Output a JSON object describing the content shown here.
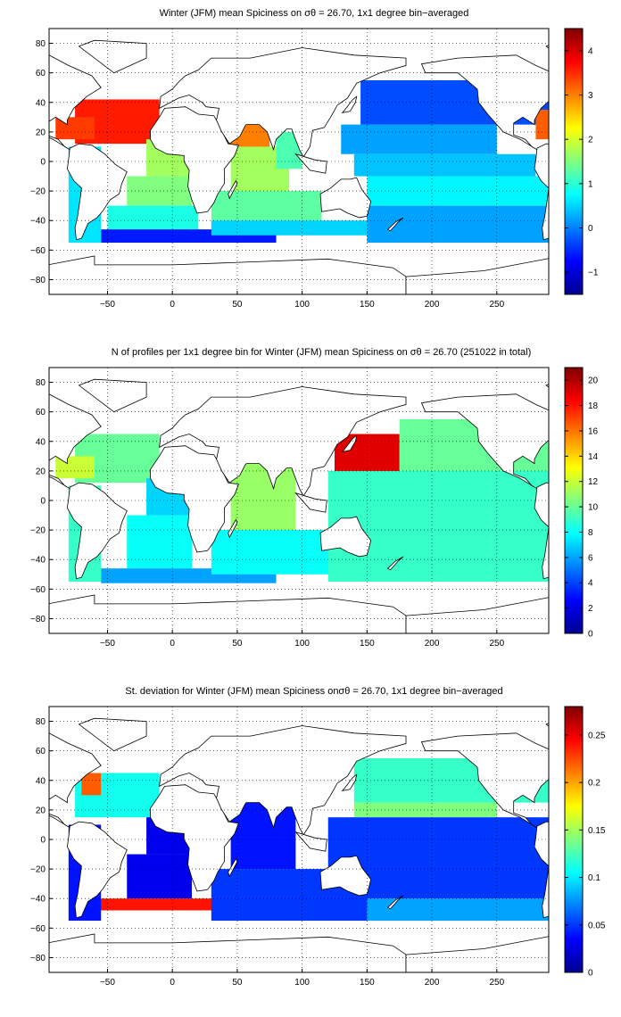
{
  "chart_data": [
    {
      "type": "heatmap",
      "title": "Winter (JFM) mean Spiciness on σθ = 26.70, 1x1 degree bin−averaged",
      "xlabel": "",
      "ylabel": "",
      "xlim": [
        -95,
        290
      ],
      "ylim": [
        -90,
        90
      ],
      "x_ticks": [
        -50,
        0,
        50,
        100,
        150,
        200,
        250
      ],
      "y_ticks": [
        80,
        60,
        40,
        20,
        0,
        -20,
        -40,
        -60,
        -80
      ],
      "grid": true,
      "colormap": "jet",
      "colorbar": {
        "min": -1.5,
        "max": 4.5,
        "ticks": [
          4,
          3,
          2,
          1,
          0,
          -1
        ]
      },
      "regions": [
        {
          "x": [
            -75,
            -10
          ],
          "y": [
            12,
            42
          ],
          "value": 3.6
        },
        {
          "x": [
            -90,
            -60
          ],
          "y": [
            15,
            30
          ],
          "value": 3.4
        },
        {
          "x": [
            -20,
            20
          ],
          "y": [
            -10,
            15
          ],
          "value": 1.7
        },
        {
          "x": [
            -35,
            15
          ],
          "y": [
            -30,
            -10
          ],
          "value": 1.5
        },
        {
          "x": [
            -50,
            20
          ],
          "y": [
            -46,
            -30
          ],
          "value": 0.9
        },
        {
          "x": [
            -55,
            80
          ],
          "y": [
            -55,
            -46
          ],
          "value": -0.6
        },
        {
          "x": [
            -80,
            -55
          ],
          "y": [
            -55,
            10
          ],
          "value": 0.6
        },
        {
          "x": [
            40,
            75
          ],
          "y": [
            10,
            27
          ],
          "value": 3.0
        },
        {
          "x": [
            45,
            90
          ],
          "y": [
            -20,
            10
          ],
          "value": 1.7
        },
        {
          "x": [
            80,
            100
          ],
          "y": [
            -5,
            20
          ],
          "value": 1.2
        },
        {
          "x": [
            30,
            115
          ],
          "y": [
            -40,
            -20
          ],
          "value": 1.3
        },
        {
          "x": [
            30,
            150
          ],
          "y": [
            -50,
            -40
          ],
          "value": 0.5
        },
        {
          "x": [
            145,
            290
          ],
          "y": [
            25,
            55
          ],
          "value": -0.3
        },
        {
          "x": [
            130,
            250
          ],
          "y": [
            5,
            25
          ],
          "value": 0.2
        },
        {
          "x": [
            140,
            280
          ],
          "y": [
            -10,
            5
          ],
          "value": 0.4
        },
        {
          "x": [
            150,
            290
          ],
          "y": [
            -30,
            -10
          ],
          "value": 0.7
        },
        {
          "x": [
            150,
            290
          ],
          "y": [
            -55,
            -30
          ],
          "value": 0.2
        },
        {
          "x": [
            280,
            290
          ],
          "y": [
            15,
            35
          ],
          "value": 3.2
        }
      ]
    },
    {
      "type": "heatmap",
      "title": "N of profiles per 1x1 degree bin for Winter (JFM) mean Spiciness on σθ = 26.70 (251022 in total)",
      "xlabel": "",
      "ylabel": "",
      "xlim": [
        -95,
        290
      ],
      "ylim": [
        -90,
        90
      ],
      "x_ticks": [
        -50,
        0,
        50,
        100,
        150,
        200,
        250
      ],
      "y_ticks": [
        80,
        60,
        40,
        20,
        0,
        -20,
        -40,
        -60,
        -80
      ],
      "grid": true,
      "colormap": "jet",
      "colorbar": {
        "min": 0,
        "max": 21,
        "ticks": [
          20,
          18,
          16,
          14,
          12,
          10,
          8,
          6,
          4,
          2,
          0
        ]
      },
      "total_profiles": 251022,
      "regions": [
        {
          "x": [
            -75,
            -10
          ],
          "y": [
            12,
            45
          ],
          "value": 10
        },
        {
          "x": [
            -90,
            -60
          ],
          "y": [
            15,
            30
          ],
          "value": 12
        },
        {
          "x": [
            -20,
            20
          ],
          "y": [
            -10,
            15
          ],
          "value": 7
        },
        {
          "x": [
            -35,
            15
          ],
          "y": [
            -46,
            -10
          ],
          "value": 8
        },
        {
          "x": [
            -55,
            80
          ],
          "y": [
            -56,
            -46
          ],
          "value": 6
        },
        {
          "x": [
            -80,
            -55
          ],
          "y": [
            -55,
            10
          ],
          "value": 9
        },
        {
          "x": [
            45,
            95
          ],
          "y": [
            -20,
            27
          ],
          "value": 11
        },
        {
          "x": [
            30,
            150
          ],
          "y": [
            -50,
            -20
          ],
          "value": 8
        },
        {
          "x": [
            125,
            175
          ],
          "y": [
            15,
            45
          ],
          "value": 19
        },
        {
          "x": [
            175,
            290
          ],
          "y": [
            20,
            55
          ],
          "value": 10
        },
        {
          "x": [
            120,
            290
          ],
          "y": [
            -55,
            20
          ],
          "value": 9
        }
      ]
    },
    {
      "type": "heatmap",
      "title": "St. deviation for Winter (JFM) mean Spiciness onσθ = 26.70, 1x1 degree bin−averaged",
      "xlabel": "",
      "ylabel": "",
      "xlim": [
        -95,
        290
      ],
      "ylim": [
        -90,
        90
      ],
      "x_ticks": [
        -50,
        0,
        50,
        100,
        150,
        200,
        250
      ],
      "y_ticks": [
        80,
        60,
        40,
        20,
        0,
        -20,
        -40,
        -60,
        -80
      ],
      "grid": true,
      "colormap": "jet",
      "colorbar": {
        "min": 0,
        "max": 0.28,
        "ticks": [
          0.25,
          0.2,
          0.15,
          0.1,
          0.05,
          0
        ]
      },
      "regions": [
        {
          "x": [
            -75,
            -10
          ],
          "y": [
            15,
            45
          ],
          "value": 0.11
        },
        {
          "x": [
            -70,
            -55
          ],
          "y": [
            30,
            45
          ],
          "value": 0.22
        },
        {
          "x": [
            -20,
            20
          ],
          "y": [
            -10,
            15
          ],
          "value": 0.03
        },
        {
          "x": [
            -35,
            15
          ],
          "y": [
            -40,
            -10
          ],
          "value": 0.03
        },
        {
          "x": [
            -60,
            150
          ],
          "y": [
            -48,
            -40
          ],
          "value": 0.24
        },
        {
          "x": [
            -80,
            -55
          ],
          "y": [
            -55,
            10
          ],
          "value": 0.04
        },
        {
          "x": [
            45,
            95
          ],
          "y": [
            -20,
            25
          ],
          "value": 0.04
        },
        {
          "x": [
            30,
            150
          ],
          "y": [
            -55,
            -20
          ],
          "value": 0.05
        },
        {
          "x": [
            140,
            290
          ],
          "y": [
            25,
            55
          ],
          "value": 0.12
        },
        {
          "x": [
            140,
            250
          ],
          "y": [
            15,
            25
          ],
          "value": 0.14
        },
        {
          "x": [
            120,
            290
          ],
          "y": [
            -40,
            15
          ],
          "value": 0.05
        },
        {
          "x": [
            150,
            290
          ],
          "y": [
            -55,
            -40
          ],
          "value": 0.08
        }
      ]
    }
  ]
}
